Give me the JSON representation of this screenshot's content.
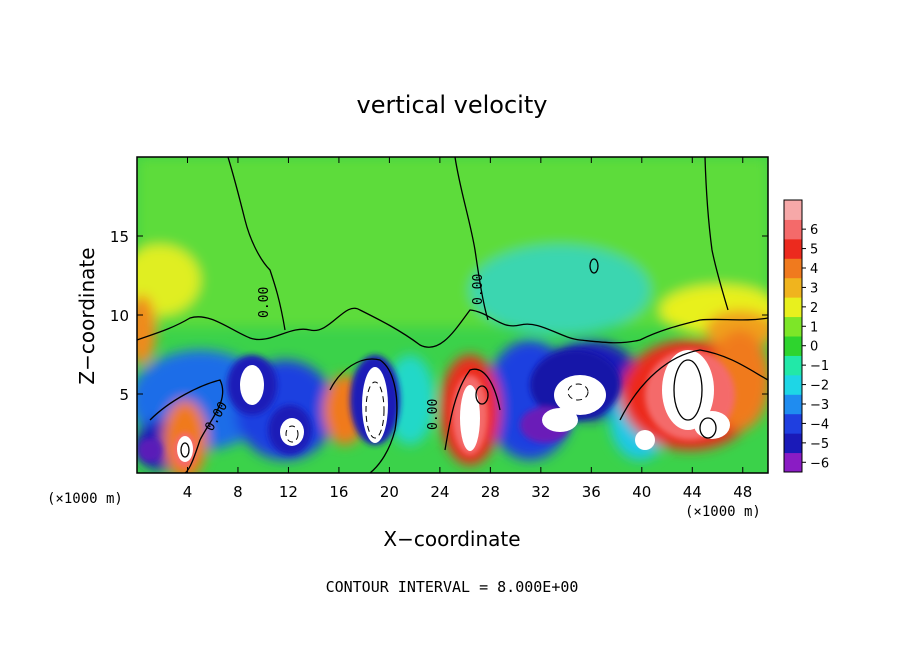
{
  "chart_data": {
    "type": "heatmap",
    "title": "vertical velocity",
    "xlabel": "X−coordinate",
    "ylabel": "Z−coordinate",
    "x_unit_label": "(×1000 m)",
    "z_unit_label": "(×1000 m)",
    "footer": "CONTOUR INTERVAL = 8.000E+00",
    "xlim": [
      0,
      50
    ],
    "ylim": [
      0,
      20
    ],
    "x_ticks": [
      4,
      8,
      12,
      16,
      20,
      24,
      28,
      32,
      36,
      40,
      44,
      48
    ],
    "z_ticks": [
      5,
      10,
      15
    ],
    "colorbar": {
      "levels": [
        -6,
        -5,
        -4,
        -3,
        -2,
        -1,
        0,
        1,
        2,
        3,
        4,
        5,
        6
      ],
      "colors": [
        "#8a1cc4",
        "#1a1ab8",
        "#1f3fe0",
        "#1f8cf0",
        "#1ed6e6",
        "#22e8a8",
        "#2ed42e",
        "#7de628",
        "#e8f01e",
        "#f0b41e",
        "#f07a1e",
        "#ec2a1e",
        "#f46a6a",
        "#f6a8a8"
      ]
    },
    "contour_labels": [
      "0.00",
      "0.00",
      "0.00",
      "0.00"
    ],
    "cells": [
      {
        "x": 2,
        "z": 2,
        "v": -5
      },
      {
        "x": 4,
        "z": 2,
        "v": 7
      },
      {
        "x": 6,
        "z": 2,
        "v": -4
      },
      {
        "x": 10,
        "z": 6,
        "v": 7
      },
      {
        "x": 12,
        "z": 2,
        "v": 7
      },
      {
        "x": 13,
        "z": 4,
        "v": -5
      },
      {
        "x": 16,
        "z": 3,
        "v": 5
      },
      {
        "x": 19,
        "z": 4,
        "v": 8
      },
      {
        "x": 22,
        "z": 5,
        "v": -3
      },
      {
        "x": 26,
        "z": 4,
        "v": 8
      },
      {
        "x": 30,
        "z": 3,
        "v": -5
      },
      {
        "x": 33,
        "z": 5,
        "v": 8
      },
      {
        "x": 36,
        "z": 6,
        "v": -4
      },
      {
        "x": 40,
        "z": 3,
        "v": 4
      },
      {
        "x": 44,
        "z": 6,
        "v": 8
      },
      {
        "x": 48,
        "z": 5,
        "v": 5
      }
    ]
  }
}
